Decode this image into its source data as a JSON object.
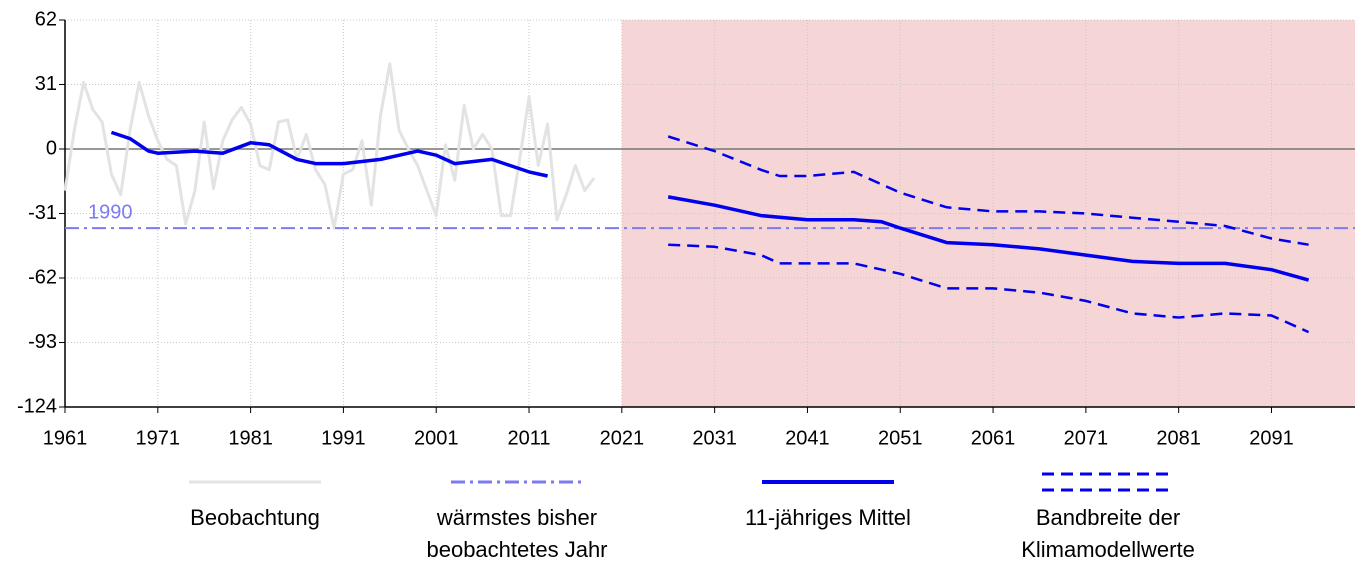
{
  "chart_data": {
    "type": "line",
    "xlim": [
      1961,
      2100
    ],
    "xticks": [
      1961,
      1971,
      1981,
      1991,
      2001,
      2011,
      2021,
      2031,
      2041,
      2051,
      2061,
      2071,
      2081,
      2091
    ],
    "ylim": [
      -124,
      62
    ],
    "yticks": [
      -124,
      -93,
      -62,
      -31,
      0,
      31,
      62
    ],
    "grid": true,
    "highlight_xrange": [
      2021,
      2100
    ],
    "highlight_color": "#f5d5d5",
    "series": [
      {
        "name": "Beobachtung",
        "color": "#e3e3e3",
        "style": "solid",
        "x": [
          1961,
          1962,
          1963,
          1964,
          1965,
          1966,
          1967,
          1968,
          1969,
          1970,
          1971,
          1972,
          1973,
          1974,
          1975,
          1976,
          1977,
          1978,
          1979,
          1980,
          1981,
          1982,
          1983,
          1984,
          1985,
          1986,
          1987,
          1988,
          1989,
          1990,
          1991,
          1992,
          1993,
          1994,
          1995,
          1996,
          1997,
          1998,
          1999,
          2000,
          2001,
          2002,
          2003,
          2004,
          2005,
          2006,
          2007,
          2008,
          2009,
          2010,
          2011,
          2012,
          2013,
          2014,
          2015,
          2016,
          2017,
          2018
        ],
        "values": [
          -20,
          9,
          32,
          19,
          13,
          -12,
          -22,
          9,
          32,
          16,
          4,
          -5,
          -8,
          -36,
          -20,
          13,
          -19,
          4,
          14,
          20,
          12,
          -8,
          -10,
          13,
          14,
          -5,
          7,
          -10,
          -17,
          -38,
          -12,
          -10,
          4,
          -27,
          16,
          41,
          9,
          0,
          -8,
          -20,
          -32,
          2,
          -15,
          21,
          0,
          7,
          0,
          -32,
          -32,
          -5,
          25,
          -8,
          12,
          -34,
          -22,
          -8,
          -20,
          -14
        ]
      },
      {
        "name": "wärmstes bisher beobachtetes Jahr",
        "color": "#7b7bef",
        "style": "dashdot",
        "y": -38,
        "label": "1990"
      },
      {
        "name": "11-jähriges Mittel",
        "color": "#0000ee",
        "style": "solid",
        "x": [
          1966,
          1968,
          1970,
          1971,
          1975,
          1978,
          1981,
          1983,
          1986,
          1988,
          1991,
          1995,
          1999,
          2001,
          2003,
          2007,
          2011,
          2013,
          2020,
          2026,
          2031,
          2036,
          2041,
          2046,
          2049,
          2051,
          2056,
          2061,
          2066,
          2071,
          2076,
          2081,
          2086,
          2091,
          2095
        ],
        "values": [
          8,
          5,
          -1,
          -2,
          -1,
          -2,
          3,
          2,
          -5,
          -7,
          -7,
          -5,
          -1,
          -3,
          -7,
          -5,
          -11,
          -13,
          null,
          -23,
          -27,
          -32,
          -34,
          -34,
          -35,
          -38,
          -45,
          -46,
          -48,
          -51,
          -54,
          -55,
          -55,
          -58,
          -63
        ]
      },
      {
        "name": "Bandbreite der Klimamodellwerte",
        "color": "#0000ee",
        "style": "dashed",
        "x": [
          2026,
          2031,
          2036,
          2038,
          2041,
          2046,
          2051,
          2056,
          2061,
          2066,
          2071,
          2076,
          2081,
          2086,
          2091,
          2095
        ],
        "values": [
          6,
          -1,
          -10,
          -13,
          -13,
          -11,
          -21,
          -28,
          -30,
          -30,
          -31,
          -33,
          -35,
          -37,
          -43,
          -46
        ],
        "lower": [
          -46,
          -47,
          -51,
          -55,
          -55,
          -55,
          -60,
          -67,
          -67,
          -69,
          -73,
          -79,
          -81,
          -79,
          -80,
          -88
        ]
      }
    ]
  }
}
